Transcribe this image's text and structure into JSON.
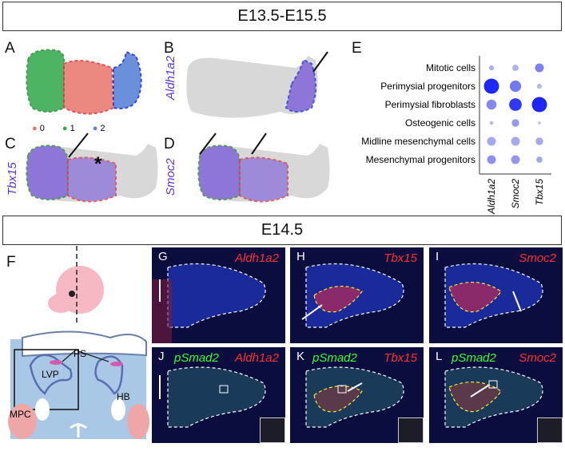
{
  "banners": {
    "top": "E13.5-E15.5",
    "middle": "E14.5"
  },
  "panels": {
    "A": "A",
    "B": "B",
    "C": "C",
    "D": "D",
    "E": "E",
    "F": "F",
    "G": "G",
    "H": "H",
    "I": "I",
    "J": "J",
    "K": "K",
    "L": "L"
  },
  "genes": {
    "aldh1a2": "Aldh1a2",
    "tbx15": "Tbx15",
    "smoc2": "Smoc2",
    "psmad2": "pSmad2"
  },
  "legend": [
    {
      "label": "0",
      "color": "#e8746a"
    },
    {
      "label": "1",
      "color": "#2ea84a"
    },
    {
      "label": "2",
      "color": "#5b84d8"
    }
  ],
  "asterisk": "*",
  "schematic": {
    "PS": "PS",
    "LVP": "LVP",
    "HB": "HB",
    "MPC": "MPC"
  },
  "chart_data": {
    "type": "scatter",
    "rows": [
      "Mitotic cells",
      "Perimysial progenitors",
      "Perimysial fibroblasts",
      "Osteogenic cells",
      "Midline mesenchymal cells",
      "Mesenchymal progenitors"
    ],
    "cols": [
      "Aldh1a2",
      "Smoc2",
      "Tbx15"
    ],
    "size": [
      [
        0.2,
        0.3,
        0.5
      ],
      [
        1.0,
        0.7,
        0.2
      ],
      [
        0.6,
        0.8,
        1.0
      ],
      [
        0.1,
        0.4,
        0.05
      ],
      [
        0.5,
        0.5,
        0.4
      ],
      [
        0.5,
        0.5,
        0.3
      ]
    ],
    "color_level": [
      [
        0.15,
        0.15,
        0.45
      ],
      [
        1.0,
        0.5,
        0.1
      ],
      [
        0.4,
        0.9,
        1.0
      ],
      [
        0.1,
        0.3,
        0.05
      ],
      [
        0.2,
        0.2,
        0.2
      ],
      [
        0.35,
        0.3,
        0.2
      ]
    ]
  }
}
